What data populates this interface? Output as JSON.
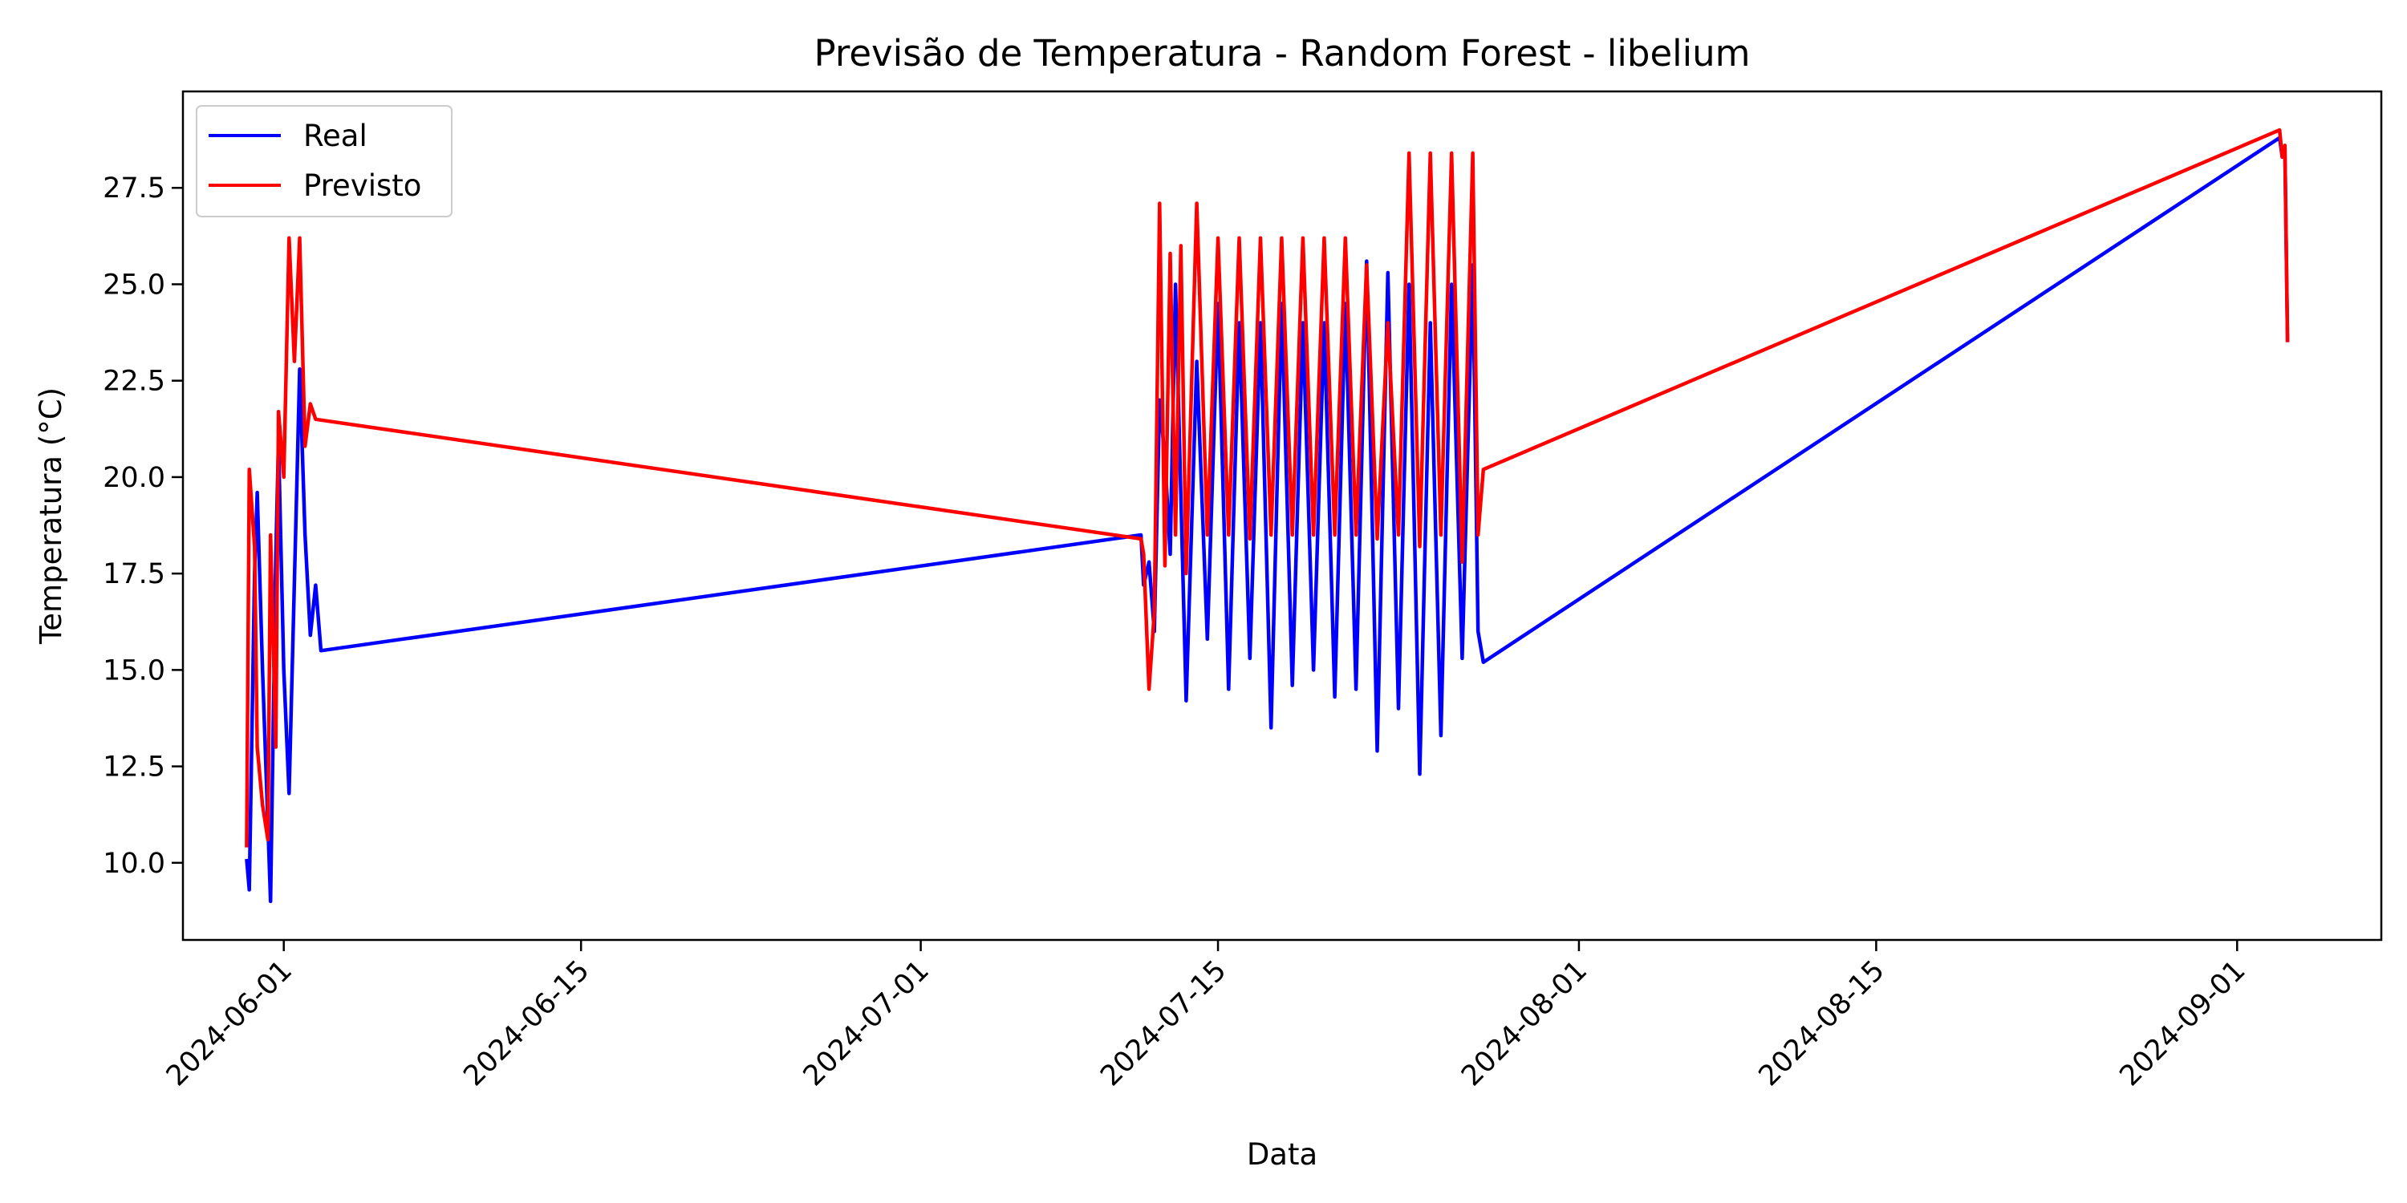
{
  "chart_data": {
    "type": "line",
    "title": "Previsão de Temperatura - Random Forest - libelium",
    "xlabel": "Data",
    "ylabel": "Temperatura (°C)",
    "xlim": [
      "2024-05-27T06:00",
      "2024-09-07T19:00"
    ],
    "ylim": [
      8.0,
      30.0
    ],
    "x_ticks": [
      "2024-06-01",
      "2024-06-15",
      "2024-07-01",
      "2024-07-15",
      "2024-08-01",
      "2024-08-15",
      "2024-09-01"
    ],
    "y_ticks": [
      "10.0",
      "12.5",
      "15.0",
      "17.5",
      "20.0",
      "22.5",
      "25.0",
      "27.5"
    ],
    "grid": false,
    "legend_position": "upper left",
    "series": [
      {
        "name": "Real",
        "color": "#0000ff",
        "points": [
          [
            "2024-05-30T06:00",
            10.1
          ],
          [
            "2024-05-30T09:00",
            9.3
          ],
          [
            "2024-05-30T15:00",
            17.5
          ],
          [
            "2024-05-30T18:00",
            19.6
          ],
          [
            "2024-05-31T00:00",
            15.0
          ],
          [
            "2024-05-31T06:00",
            11.0
          ],
          [
            "2024-05-31T09:00",
            9.0
          ],
          [
            "2024-05-31T15:00",
            18.0
          ],
          [
            "2024-05-31T18:00",
            20.9
          ],
          [
            "2024-06-01T00:00",
            15.0
          ],
          [
            "2024-06-01T06:00",
            11.8
          ],
          [
            "2024-06-01T15:00",
            20.0
          ],
          [
            "2024-06-01T18:00",
            22.8
          ],
          [
            "2024-06-02T00:00",
            18.5
          ],
          [
            "2024-06-02T06:00",
            15.9
          ],
          [
            "2024-06-02T12:00",
            17.2
          ],
          [
            "2024-06-02T18:00",
            15.5
          ],
          [
            "2024-07-11T09:00",
            18.5
          ],
          [
            "2024-07-11T12:00",
            17.2
          ],
          [
            "2024-07-11T18:00",
            17.8
          ],
          [
            "2024-07-12T00:00",
            16.0
          ],
          [
            "2024-07-12T06:00",
            22.0
          ],
          [
            "2024-07-12T12:00",
            20.5
          ],
          [
            "2024-07-12T18:00",
            18.0
          ],
          [
            "2024-07-13T00:00",
            25.0
          ],
          [
            "2024-07-13T06:00",
            19.5
          ],
          [
            "2024-07-13T12:00",
            14.2
          ],
          [
            "2024-07-14T00:00",
            23.0
          ],
          [
            "2024-07-14T12:00",
            15.8
          ],
          [
            "2024-07-15T00:00",
            24.5
          ],
          [
            "2024-07-15T12:00",
            14.5
          ],
          [
            "2024-07-16T00:00",
            24.0
          ],
          [
            "2024-07-16T12:00",
            15.3
          ],
          [
            "2024-07-17T00:00",
            24.0
          ],
          [
            "2024-07-17T12:00",
            13.5
          ],
          [
            "2024-07-18T00:00",
            24.5
          ],
          [
            "2024-07-18T12:00",
            14.6
          ],
          [
            "2024-07-19T00:00",
            24.0
          ],
          [
            "2024-07-19T12:00",
            15.0
          ],
          [
            "2024-07-20T00:00",
            24.0
          ],
          [
            "2024-07-20T12:00",
            14.3
          ],
          [
            "2024-07-21T00:00",
            24.5
          ],
          [
            "2024-07-21T12:00",
            14.5
          ],
          [
            "2024-07-22T00:00",
            25.6
          ],
          [
            "2024-07-22T12:00",
            12.9
          ],
          [
            "2024-07-23T00:00",
            25.3
          ],
          [
            "2024-07-23T12:00",
            14.0
          ],
          [
            "2024-07-24T00:00",
            25.0
          ],
          [
            "2024-07-24T12:00",
            12.3
          ],
          [
            "2024-07-25T00:00",
            24.0
          ],
          [
            "2024-07-25T12:00",
            13.3
          ],
          [
            "2024-07-26T00:00",
            25.0
          ],
          [
            "2024-07-26T12:00",
            15.3
          ],
          [
            "2024-07-27T00:00",
            25.5
          ],
          [
            "2024-07-27T06:00",
            16.0
          ],
          [
            "2024-07-27T12:00",
            15.2
          ],
          [
            "2024-09-03T00:00",
            28.8
          ],
          [
            "2024-09-03T03:00",
            28.3
          ],
          [
            "2024-09-03T06:00",
            28.5
          ],
          [
            "2024-09-03T09:00",
            23.5
          ]
        ]
      },
      {
        "name": "Previsto",
        "color": "#ff0000",
        "points": [
          [
            "2024-05-30T06:00",
            10.4
          ],
          [
            "2024-05-30T09:00",
            20.2
          ],
          [
            "2024-05-30T15:00",
            18.2
          ],
          [
            "2024-05-30T18:00",
            13.0
          ],
          [
            "2024-05-31T00:00",
            11.5
          ],
          [
            "2024-05-31T06:00",
            10.6
          ],
          [
            "2024-05-31T09:00",
            18.5
          ],
          [
            "2024-05-31T15:00",
            13.0
          ],
          [
            "2024-05-31T18:00",
            21.7
          ],
          [
            "2024-06-01T00:00",
            20.0
          ],
          [
            "2024-06-01T06:00",
            26.2
          ],
          [
            "2024-06-01T12:00",
            23.0
          ],
          [
            "2024-06-01T18:00",
            26.2
          ],
          [
            "2024-06-02T00:00",
            20.8
          ],
          [
            "2024-06-02T06:00",
            21.9
          ],
          [
            "2024-06-02T12:00",
            21.5
          ],
          [
            "2024-07-11T09:00",
            18.4
          ],
          [
            "2024-07-11T12:00",
            18.0
          ],
          [
            "2024-07-11T18:00",
            14.5
          ],
          [
            "2024-07-12T00:00",
            16.5
          ],
          [
            "2024-07-12T06:00",
            27.1
          ],
          [
            "2024-07-12T12:00",
            17.7
          ],
          [
            "2024-07-12T18:00",
            25.8
          ],
          [
            "2024-07-13T00:00",
            18.5
          ],
          [
            "2024-07-13T06:00",
            26.0
          ],
          [
            "2024-07-13T12:00",
            17.5
          ],
          [
            "2024-07-14T00:00",
            27.1
          ],
          [
            "2024-07-14T12:00",
            18.5
          ],
          [
            "2024-07-15T00:00",
            26.2
          ],
          [
            "2024-07-15T12:00",
            18.5
          ],
          [
            "2024-07-16T00:00",
            26.2
          ],
          [
            "2024-07-16T12:00",
            18.4
          ],
          [
            "2024-07-17T00:00",
            26.2
          ],
          [
            "2024-07-17T12:00",
            18.5
          ],
          [
            "2024-07-18T00:00",
            26.2
          ],
          [
            "2024-07-18T12:00",
            18.5
          ],
          [
            "2024-07-19T00:00",
            26.2
          ],
          [
            "2024-07-19T12:00",
            18.5
          ],
          [
            "2024-07-20T00:00",
            26.2
          ],
          [
            "2024-07-20T12:00",
            18.5
          ],
          [
            "2024-07-21T00:00",
            26.2
          ],
          [
            "2024-07-21T12:00",
            18.5
          ],
          [
            "2024-07-22T00:00",
            25.5
          ],
          [
            "2024-07-22T12:00",
            18.4
          ],
          [
            "2024-07-23T00:00",
            24.0
          ],
          [
            "2024-07-23T12:00",
            18.5
          ],
          [
            "2024-07-24T00:00",
            28.4
          ],
          [
            "2024-07-24T12:00",
            18.2
          ],
          [
            "2024-07-25T00:00",
            28.4
          ],
          [
            "2024-07-25T12:00",
            18.5
          ],
          [
            "2024-07-26T00:00",
            28.4
          ],
          [
            "2024-07-26T12:00",
            17.8
          ],
          [
            "2024-07-27T00:00",
            28.4
          ],
          [
            "2024-07-27T06:00",
            18.5
          ],
          [
            "2024-07-27T12:00",
            20.2
          ],
          [
            "2024-09-03T00:00",
            29.0
          ],
          [
            "2024-09-03T03:00",
            28.3
          ],
          [
            "2024-09-03T06:00",
            28.6
          ],
          [
            "2024-09-03T09:00",
            23.5
          ]
        ]
      }
    ]
  }
}
